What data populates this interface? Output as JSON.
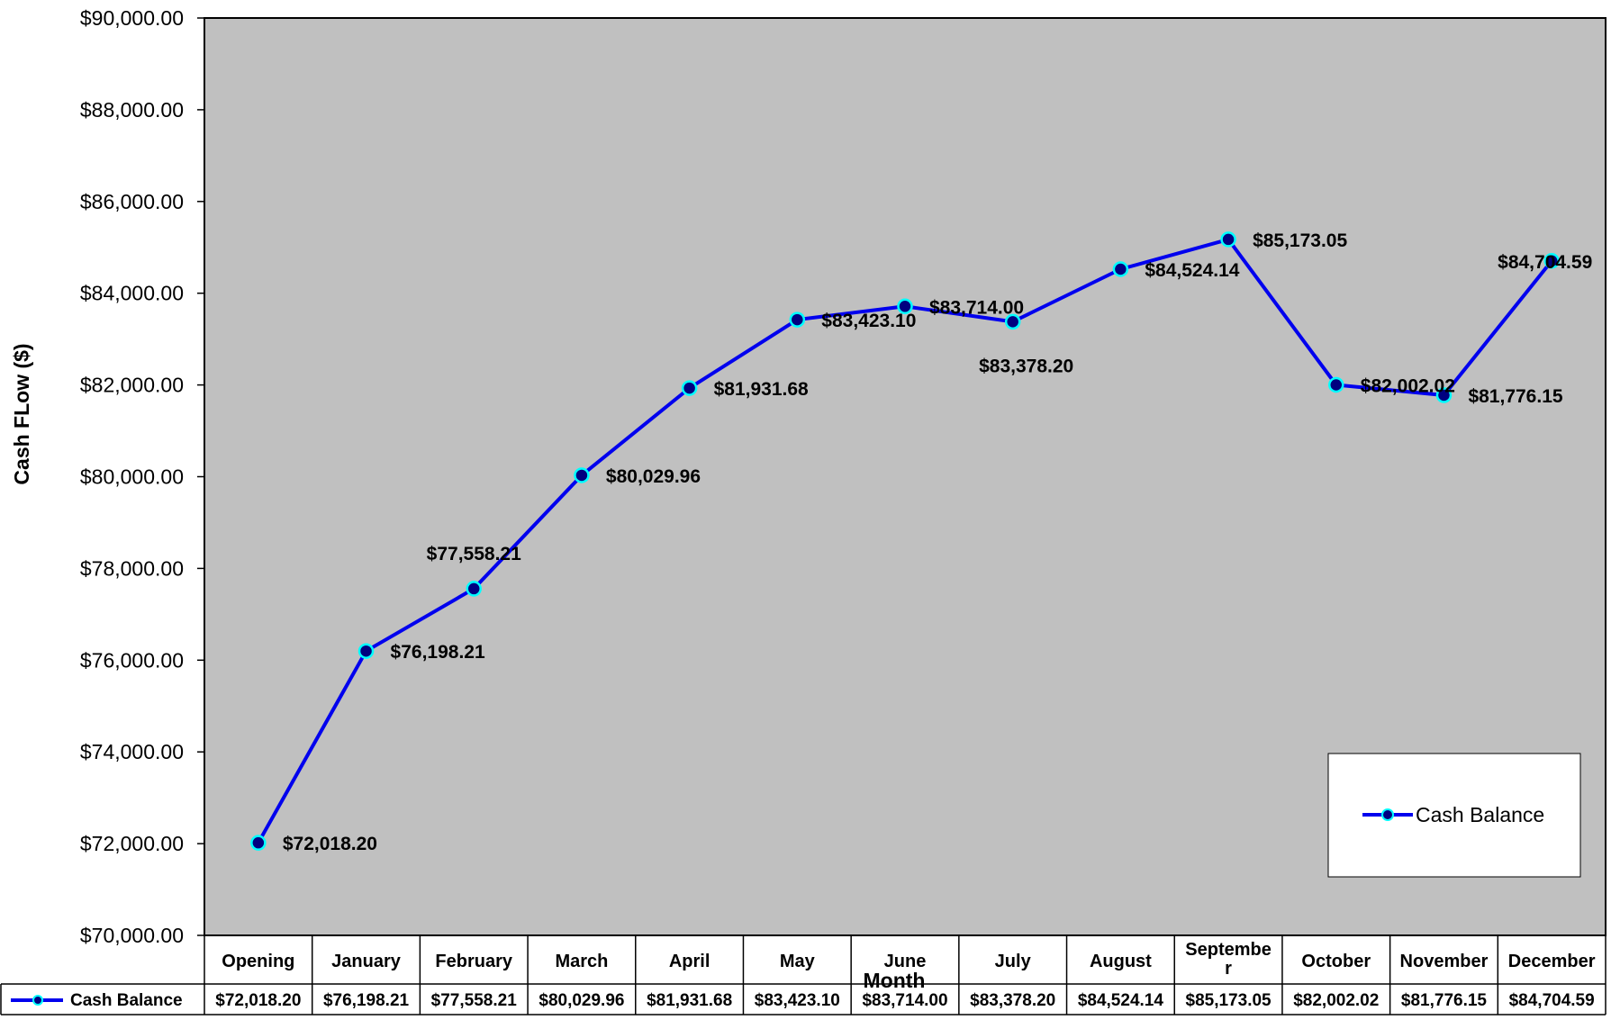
{
  "chart_data": {
    "type": "line",
    "xlabel": "Month",
    "ylabel": "Cash FLow ($)",
    "ylim": [
      70000,
      90000
    ],
    "ytick_step": 2000,
    "ytick_labels": [
      "$70,000.00",
      "$72,000.00",
      "$74,000.00",
      "$76,000.00",
      "$78,000.00",
      "$80,000.00",
      "$82,000.00",
      "$84,000.00",
      "$86,000.00",
      "$88,000.00",
      "$90,000.00"
    ],
    "categories": [
      "Opening",
      "January",
      "February",
      "March",
      "April",
      "May",
      "June",
      "July",
      "August",
      "Septembe\nr",
      "October",
      "November",
      "December"
    ],
    "series": [
      {
        "name": "Cash Balance",
        "values": [
          72018.2,
          76198.21,
          77558.21,
          80029.96,
          81931.68,
          83423.1,
          83714.0,
          83378.2,
          84524.14,
          85173.05,
          82002.02,
          81776.15,
          84704.59
        ],
        "labels": [
          "$72,018.20",
          "$76,198.21",
          "$77,558.21",
          "$80,029.96",
          "$81,931.68",
          "$83,423.10",
          "$83,714.00",
          "$83,378.20",
          "$84,524.14",
          "$85,173.05",
          "$82,002.02",
          "$81,776.15",
          "$84,704.59"
        ]
      }
    ],
    "legend_position": "bottom-right",
    "grid": false,
    "data_table": true,
    "colors": {
      "plot_background": "#c0c0c0",
      "line": "#0000ee",
      "marker_fill": "#000080",
      "marker_edge": "#00ffff"
    }
  }
}
